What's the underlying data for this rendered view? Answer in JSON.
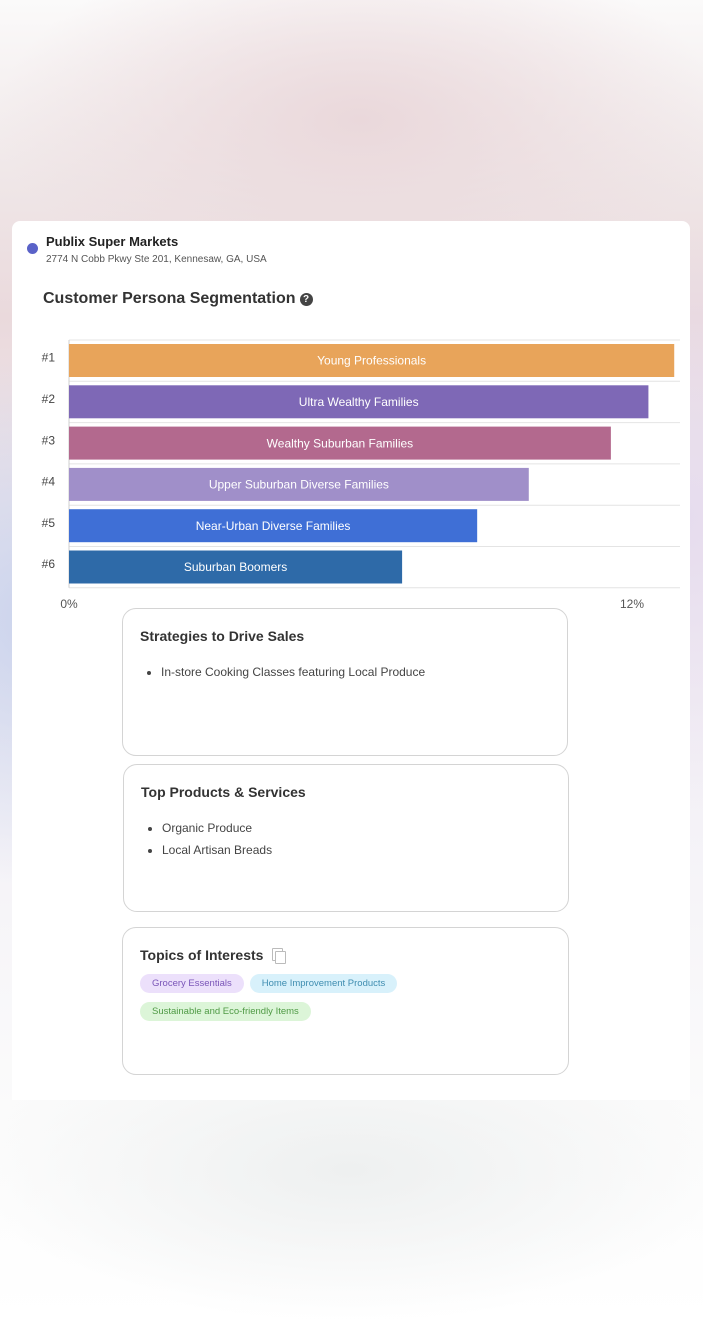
{
  "store": {
    "name": "Publix Super Markets",
    "address": "2774 N Cobb Pkwy Ste 201, Kennesaw, GA, USA",
    "dot_color": "#5a62c8"
  },
  "section": {
    "title": "Customer Persona Segmentation",
    "help_icon": "question-circle-icon"
  },
  "chart_data": {
    "type": "bar",
    "orientation": "horizontal",
    "categories": [
      "#1",
      "#2",
      "#3",
      "#4",
      "#5",
      "#6"
    ],
    "series": [
      {
        "values": [
          12.9,
          12.35,
          11.55,
          9.8,
          8.7,
          7.1
        ],
        "bar_labels": [
          "Young Professionals",
          "Ultra Wealthy Families",
          "Wealthy Suburban Families",
          "Upper Suburban Diverse Families",
          "Near-Urban Diverse Families",
          "Suburban Boomers"
        ],
        "colors": [
          "#e8a45a",
          "#7e68b6",
          "#b3698e",
          "#a08fc9",
          "#3f6fd6",
          "#2e6aa8"
        ]
      }
    ],
    "x_ticks": [
      "0%",
      "12%"
    ],
    "xlim": [
      0,
      13
    ],
    "grid": true
  },
  "strategies": {
    "title": "Strategies to Drive Sales",
    "items": [
      "In-store Cooking Classes featuring Local Produce"
    ]
  },
  "products": {
    "title": "Top Products & Services",
    "items": [
      "Organic Produce",
      "Local Artisan Breads"
    ]
  },
  "topics": {
    "title": "Topics of Interests",
    "copy_icon": "copy-icon",
    "tags": [
      {
        "label": "Grocery Essentials",
        "bg": "#ece0fb",
        "fg": "#7a55b8"
      },
      {
        "label": "Home Improvement Products",
        "bg": "#d8f1fb",
        "fg": "#3f8db0"
      },
      {
        "label": "Sustainable and Eco-friendly Items",
        "bg": "#dcf5d8",
        "fg": "#4f9a45"
      }
    ]
  }
}
